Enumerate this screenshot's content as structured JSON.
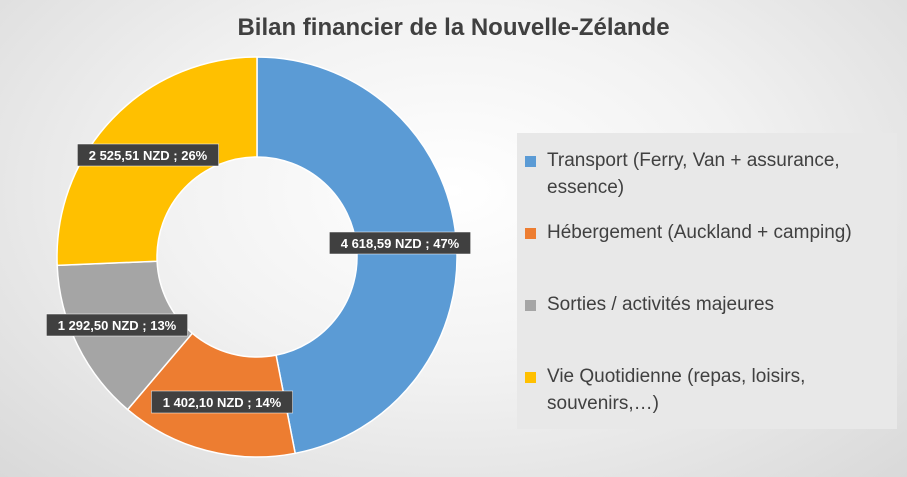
{
  "chart_data": {
    "type": "pie",
    "variant": "donut",
    "title": "Bilan financier de la Nouvelle-Zélande",
    "categories": [
      "Transport (Ferry, Van + assurance, essence)",
      "Hébergement (Auckland + camping)",
      "Sorties / activités majeures",
      "Vie Quotidienne (repas, loisirs, souvenirs,…)"
    ],
    "values": [
      4618.59,
      1402.1,
      1292.5,
      2525.51
    ],
    "data_labels": [
      "4 618,59 NZD ; 47%",
      "1 402,10 NZD ; 14%",
      "1 292,50 NZD ; 13%",
      "2 525,51 NZD ; 26%"
    ],
    "colors": [
      "#5b9bd5",
      "#ed7d31",
      "#a5a5a5",
      "#ffc000"
    ],
    "legend_position": "right"
  }
}
